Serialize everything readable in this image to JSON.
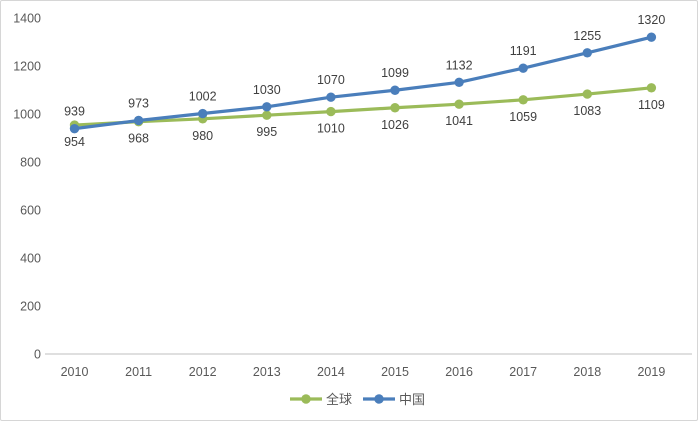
{
  "chart_data": {
    "type": "line",
    "title": "",
    "xlabel": "",
    "ylabel": "",
    "categories": [
      "2010",
      "2011",
      "2012",
      "2013",
      "2014",
      "2015",
      "2016",
      "2017",
      "2018",
      "2019"
    ],
    "series": [
      {
        "id": "global",
        "name": "全球",
        "color": "#9BBB59",
        "values": [
          954,
          968,
          980,
          995,
          1010,
          1026,
          1041,
          1059,
          1083,
          1109
        ],
        "label_position": "below",
        "marker": "circle"
      },
      {
        "id": "china",
        "name": "中国",
        "color": "#4A7EBB",
        "values": [
          939,
          973,
          1002,
          1030,
          1070,
          1099,
          1132,
          1191,
          1255,
          1320
        ],
        "label_position": "above",
        "marker": "circle"
      }
    ],
    "ylim": [
      0,
      1400
    ],
    "y_tick_step": 200,
    "y_tick_labels": [
      "0",
      "200",
      "400",
      "600",
      "800",
      "1000",
      "1200",
      "1400"
    ],
    "grid": false,
    "data_labels": true,
    "legend_position": "bottom"
  },
  "colors": {
    "background": "#FFFFFF",
    "border": "#D6D6D6",
    "axis_line": "#BFBFBF",
    "axis_text": "#595959",
    "data_label_text": "#404040",
    "series_global": "#9BBB59",
    "series_china": "#4A7EBB"
  }
}
